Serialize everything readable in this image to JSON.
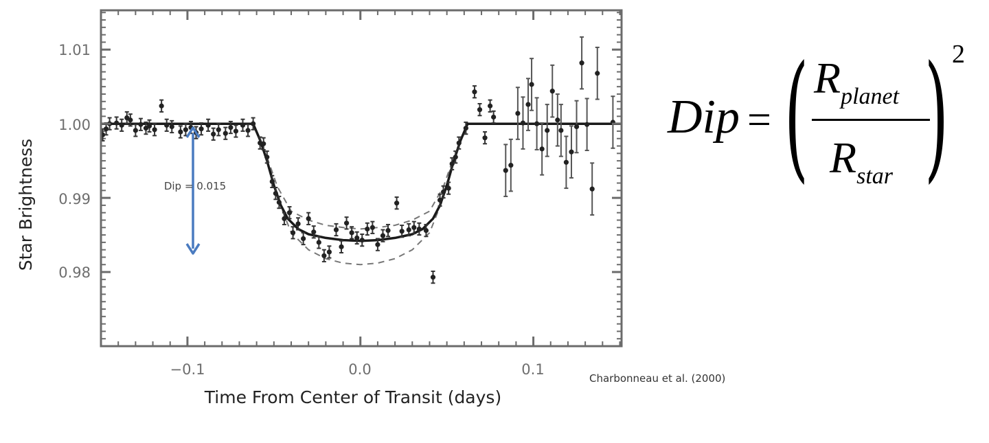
{
  "chart_data": {
    "type": "scatter",
    "title": "",
    "xlabel": "Time From Center of Transit (days)",
    "ylabel": "Star Brightness",
    "xlim": [
      -0.15,
      0.151
    ],
    "ylim": [
      0.97,
      1.0153
    ],
    "x_ticks": [
      -0.1,
      0.0,
      0.1
    ],
    "x_tick_labels": [
      "−0.1",
      "0.0",
      "0.1"
    ],
    "y_ticks": [
      0.98,
      0.99,
      1.0,
      1.01
    ],
    "y_tick_labels": [
      "0.98",
      "0.99",
      "1.00",
      "1.01"
    ],
    "grid": false,
    "legend": "none",
    "series": [
      {
        "name": "Observed brightness (with error bars)",
        "type": "scatter-errorbar",
        "points": [
          {
            "x": -0.149,
            "y": 0.9985,
            "err": 0.0008
          },
          {
            "x": -0.147,
            "y": 0.9993,
            "err": 0.0008
          },
          {
            "x": -0.145,
            "y": 1.0,
            "err": 0.0008
          },
          {
            "x": -0.141,
            "y": 1.0001,
            "err": 0.0008
          },
          {
            "x": -0.138,
            "y": 0.9998,
            "err": 0.0008
          },
          {
            "x": -0.135,
            "y": 1.0008,
            "err": 0.0008
          },
          {
            "x": -0.133,
            "y": 1.0005,
            "err": 0.0008
          },
          {
            "x": -0.13,
            "y": 0.9991,
            "err": 0.0008
          },
          {
            "x": -0.127,
            "y": 0.9999,
            "err": 0.0008
          },
          {
            "x": -0.124,
            "y": 0.9994,
            "err": 0.0008
          },
          {
            "x": -0.122,
            "y": 0.9997,
            "err": 0.0008
          },
          {
            "x": -0.119,
            "y": 0.9992,
            "err": 0.0008
          },
          {
            "x": -0.115,
            "y": 1.0024,
            "err": 0.0008
          },
          {
            "x": -0.112,
            "y": 0.9998,
            "err": 0.0008
          },
          {
            "x": -0.109,
            "y": 0.9996,
            "err": 0.0008
          },
          {
            "x": -0.104,
            "y": 0.9989,
            "err": 0.0008
          },
          {
            "x": -0.101,
            "y": 0.9992,
            "err": 0.0008
          },
          {
            "x": -0.098,
            "y": 0.9995,
            "err": 0.0008
          },
          {
            "x": -0.095,
            "y": 0.9988,
            "err": 0.0008
          },
          {
            "x": -0.092,
            "y": 0.9993,
            "err": 0.0008
          },
          {
            "x": -0.088,
            "y": 0.9998,
            "err": 0.0008
          },
          {
            "x": -0.085,
            "y": 0.9986,
            "err": 0.0008
          },
          {
            "x": -0.082,
            "y": 0.9992,
            "err": 0.0008
          },
          {
            "x": -0.078,
            "y": 0.9987,
            "err": 0.0008
          },
          {
            "x": -0.075,
            "y": 0.9995,
            "err": 0.0008
          },
          {
            "x": -0.072,
            "y": 0.999,
            "err": 0.0008
          },
          {
            "x": -0.068,
            "y": 0.9998,
            "err": 0.0008
          },
          {
            "x": -0.065,
            "y": 0.9991,
            "err": 0.0008
          },
          {
            "x": -0.062,
            "y": 1.0,
            "err": 0.0008
          },
          {
            "x": -0.058,
            "y": 0.9974,
            "err": 0.0008
          },
          {
            "x": -0.056,
            "y": 0.9973,
            "err": 0.0008
          },
          {
            "x": -0.054,
            "y": 0.9955,
            "err": 0.0008
          },
          {
            "x": -0.051,
            "y": 0.9922,
            "err": 0.0008
          },
          {
            "x": -0.049,
            "y": 0.9906,
            "err": 0.0008
          },
          {
            "x": -0.047,
            "y": 0.9894,
            "err": 0.0008
          },
          {
            "x": -0.044,
            "y": 0.9872,
            "err": 0.0008
          },
          {
            "x": -0.041,
            "y": 0.988,
            "err": 0.0008
          },
          {
            "x": -0.039,
            "y": 0.9853,
            "err": 0.0008
          },
          {
            "x": -0.036,
            "y": 0.9865,
            "err": 0.0008
          },
          {
            "x": -0.033,
            "y": 0.9845,
            "err": 0.0008
          },
          {
            "x": -0.03,
            "y": 0.9872,
            "err": 0.0008
          },
          {
            "x": -0.027,
            "y": 0.9854,
            "err": 0.0008
          },
          {
            "x": -0.024,
            "y": 0.984,
            "err": 0.0008
          },
          {
            "x": -0.021,
            "y": 0.9822,
            "err": 0.0008
          },
          {
            "x": -0.018,
            "y": 0.9827,
            "err": 0.0008
          },
          {
            "x": -0.014,
            "y": 0.9857,
            "err": 0.0008
          },
          {
            "x": -0.011,
            "y": 0.9834,
            "err": 0.0008
          },
          {
            "x": -0.008,
            "y": 0.9866,
            "err": 0.0008
          },
          {
            "x": -0.005,
            "y": 0.9853,
            "err": 0.0008
          },
          {
            "x": -0.002,
            "y": 0.9846,
            "err": 0.0008
          },
          {
            "x": 0.001,
            "y": 0.9843,
            "err": 0.0008
          },
          {
            "x": 0.004,
            "y": 0.9858,
            "err": 0.0008
          },
          {
            "x": 0.007,
            "y": 0.986,
            "err": 0.0008
          },
          {
            "x": 0.01,
            "y": 0.9837,
            "err": 0.0008
          },
          {
            "x": 0.013,
            "y": 0.9849,
            "err": 0.0008
          },
          {
            "x": 0.016,
            "y": 0.9856,
            "err": 0.0008
          },
          {
            "x": 0.021,
            "y": 0.9893,
            "err": 0.0008
          },
          {
            "x": 0.024,
            "y": 0.9855,
            "err": 0.0008
          },
          {
            "x": 0.028,
            "y": 0.9857,
            "err": 0.0008
          },
          {
            "x": 0.031,
            "y": 0.986,
            "err": 0.0008
          },
          {
            "x": 0.034,
            "y": 0.9858,
            "err": 0.0008
          },
          {
            "x": 0.038,
            "y": 0.9856,
            "err": 0.0008
          },
          {
            "x": 0.042,
            "y": 0.9793,
            "err": 0.0008
          },
          {
            "x": 0.046,
            "y": 0.9897,
            "err": 0.0008
          },
          {
            "x": 0.048,
            "y": 0.9908,
            "err": 0.0008
          },
          {
            "x": 0.051,
            "y": 0.9913,
            "err": 0.0008
          },
          {
            "x": 0.053,
            "y": 0.9946,
            "err": 0.0008
          },
          {
            "x": 0.055,
            "y": 0.9955,
            "err": 0.0008
          },
          {
            "x": 0.057,
            "y": 0.9974,
            "err": 0.0008
          },
          {
            "x": 0.061,
            "y": 0.9994,
            "err": 0.0008
          },
          {
            "x": 0.066,
            "y": 1.0043,
            "err": 0.0008
          },
          {
            "x": 0.069,
            "y": 1.0019,
            "err": 0.0008
          },
          {
            "x": 0.072,
            "y": 0.9981,
            "err": 0.0008
          },
          {
            "x": 0.075,
            "y": 1.0024,
            "err": 0.0008
          },
          {
            "x": 0.077,
            "y": 1.0009,
            "err": 0.0008
          },
          {
            "x": 0.084,
            "y": 0.9937,
            "err": 0.0035
          },
          {
            "x": 0.087,
            "y": 0.9944,
            "err": 0.0035
          },
          {
            "x": 0.091,
            "y": 1.0014,
            "err": 0.0035
          },
          {
            "x": 0.094,
            "y": 1.0001,
            "err": 0.0035
          },
          {
            "x": 0.097,
            "y": 1.0026,
            "err": 0.0035
          },
          {
            "x": 0.099,
            "y": 1.0053,
            "err": 0.0035
          },
          {
            "x": 0.102,
            "y": 1.0,
            "err": 0.0035
          },
          {
            "x": 0.105,
            "y": 0.9966,
            "err": 0.0035
          },
          {
            "x": 0.108,
            "y": 0.9991,
            "err": 0.0035
          },
          {
            "x": 0.111,
            "y": 1.0044,
            "err": 0.0035
          },
          {
            "x": 0.114,
            "y": 1.0005,
            "err": 0.0035
          },
          {
            "x": 0.116,
            "y": 0.9991,
            "err": 0.0035
          },
          {
            "x": 0.119,
            "y": 0.9948,
            "err": 0.0035
          },
          {
            "x": 0.122,
            "y": 0.9962,
            "err": 0.0035
          },
          {
            "x": 0.125,
            "y": 0.9996,
            "err": 0.0035
          },
          {
            "x": 0.128,
            "y": 1.0082,
            "err": 0.0035
          },
          {
            "x": 0.131,
            "y": 0.9999,
            "err": 0.0035
          },
          {
            "x": 0.134,
            "y": 0.9912,
            "err": 0.0035
          },
          {
            "x": 0.137,
            "y": 1.0068,
            "err": 0.0035
          },
          {
            "x": 0.146,
            "y": 1.0002,
            "err": 0.0035
          }
        ]
      },
      {
        "name": "Model fit",
        "type": "line",
        "style": "solid",
        "x": [
          -0.15,
          -0.062,
          -0.058,
          -0.054,
          -0.05,
          -0.046,
          -0.042,
          -0.036,
          -0.03,
          -0.02,
          -0.01,
          0.0,
          0.01,
          0.02,
          0.03,
          0.036,
          0.042,
          0.046,
          0.05,
          0.054,
          0.058,
          0.062,
          0.151
        ],
        "y": [
          1.0,
          1.0,
          0.9978,
          0.995,
          0.9917,
          0.989,
          0.9872,
          0.9858,
          0.9851,
          0.9846,
          0.9843,
          0.9842,
          0.9843,
          0.9846,
          0.9851,
          0.9858,
          0.9872,
          0.989,
          0.9917,
          0.995,
          0.9978,
          1.0,
          1.0
        ]
      },
      {
        "name": "Model envelope (upper)",
        "type": "line",
        "style": "dashed",
        "x": [
          -0.054,
          -0.048,
          -0.04,
          -0.03,
          -0.02,
          -0.01,
          0.0,
          0.01,
          0.02,
          0.03,
          0.04,
          0.048,
          0.054
        ],
        "y": [
          0.9955,
          0.9915,
          0.9882,
          0.987,
          0.9863,
          0.986,
          0.9858,
          0.986,
          0.9863,
          0.987,
          0.9882,
          0.9915,
          0.9955
        ]
      },
      {
        "name": "Model envelope (lower)",
        "type": "line",
        "style": "dashed",
        "x": [
          -0.052,
          -0.048,
          -0.04,
          -0.03,
          -0.02,
          -0.01,
          0.0,
          0.01,
          0.02,
          0.03,
          0.04,
          0.048,
          0.052
        ],
        "y": [
          0.994,
          0.99,
          0.9853,
          0.983,
          0.9818,
          0.9812,
          0.981,
          0.9812,
          0.9818,
          0.983,
          0.9853,
          0.99,
          0.994
        ]
      }
    ],
    "annotations": [
      {
        "type": "double-arrow",
        "x": -0.097,
        "y_from": 0.9995,
        "y_to": 0.9828,
        "color": "#4a7bc0"
      },
      {
        "type": "text",
        "text": "Dip = 0.015",
        "x": -0.097,
        "y": 0.992
      }
    ]
  },
  "plot": {
    "x_tick_labels": [
      "−0.1",
      "0.0",
      "0.1"
    ],
    "y_tick_labels": [
      "1.01",
      "1.00",
      "0.99",
      "0.98"
    ],
    "xlabel": "Time From Center of Transit (days)",
    "ylabel": "Star Brightness",
    "annotation_label": "Dip = 0.015",
    "arrow_color": "#4a7bc0",
    "frame_color": "#6b6b6b",
    "data_color": "#222222"
  },
  "formula": {
    "lhs": "Dip",
    "equals": "=",
    "numerator_base": "R",
    "numerator_sub": "planet",
    "denominator_base": "R",
    "denominator_sub": "star",
    "left_paren": "(",
    "right_paren": ")",
    "exponent": "2"
  },
  "citation": "Charbonneau et al. (2000)"
}
